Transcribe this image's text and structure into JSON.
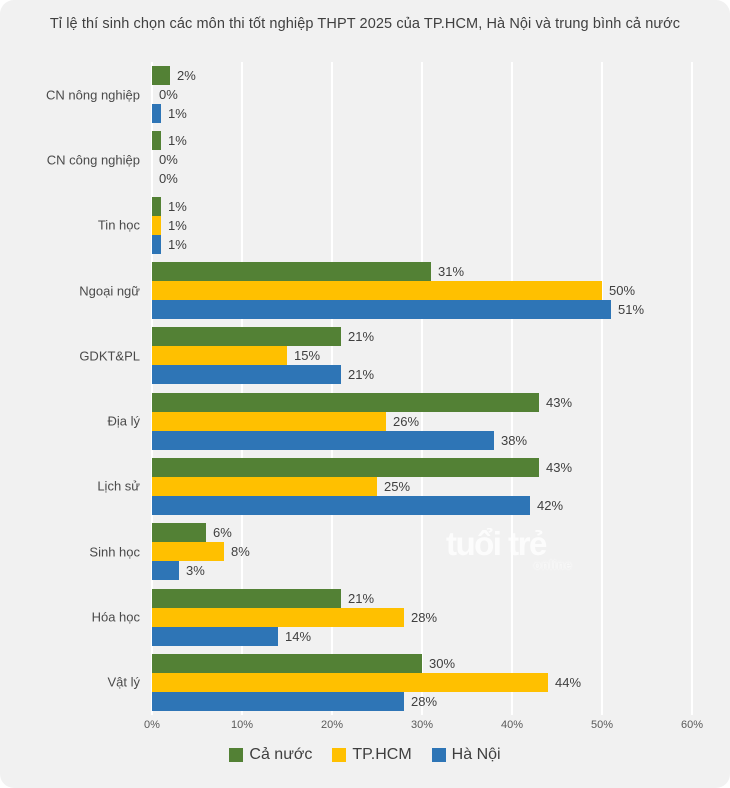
{
  "watermark": {
    "primary": "tuổi trẻ",
    "secondary": "online"
  },
  "colors": {
    "background": "#f1f1f1",
    "gridline": "#fafafa",
    "title_text": "#404040",
    "axis_text": "#595959",
    "value_text": "#404040",
    "series_green": "#538135",
    "series_yellow": "#FFC000",
    "series_blue": "#2E75B6"
  },
  "chart_data": {
    "type": "bar",
    "orientation": "horizontal",
    "title": "Tỉ lệ thí sinh chọn các môn thi tốt nghiệp THPT 2025 của TP.HCM, Hà Nội và trung bình cả nước",
    "categories": [
      "CN nông nghiệp",
      "CN công nghiệp",
      "Tin học",
      "Ngoại ngữ",
      "GDKT&PL",
      "Địa lý",
      "Lịch sử",
      "Sinh học",
      "Hóa học",
      "Vật lý"
    ],
    "series": [
      {
        "name": "Cả nước",
        "color": "#538135",
        "values": [
          2,
          1,
          1,
          31,
          21,
          43,
          43,
          6,
          21,
          30
        ]
      },
      {
        "name": "TP.HCM",
        "color": "#FFC000",
        "values": [
          0,
          0,
          1,
          50,
          15,
          26,
          25,
          8,
          28,
          44
        ]
      },
      {
        "name": "Hà Nội",
        "color": "#2E75B6",
        "values": [
          1,
          0,
          1,
          51,
          21,
          38,
          42,
          3,
          14,
          28
        ]
      }
    ],
    "value_label_format": "{v}%",
    "x_tick_labels": [
      "0%",
      "10%",
      "20%",
      "30%",
      "40%",
      "50%",
      "60%"
    ],
    "xlim": [
      0,
      60
    ],
    "grid": true,
    "legend_position": "bottom"
  }
}
